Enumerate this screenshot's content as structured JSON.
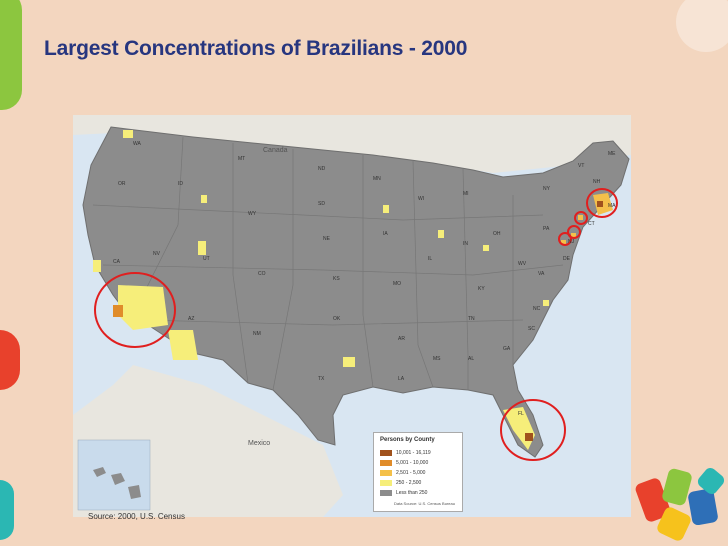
{
  "title": "Largest Concentrations of Brazilians - 2000",
  "source": "Source: 2000, U.S. Census",
  "map": {
    "country_labels": {
      "canada": "Canada",
      "mexico": "Mexico"
    },
    "state_labels": [
      "WA",
      "OR",
      "ID",
      "MT",
      "ND",
      "MN",
      "WI",
      "MI",
      "NY",
      "VT",
      "ME",
      "NH",
      "MA",
      "CT",
      "NJ",
      "PA",
      "OH",
      "IN",
      "IL",
      "IA",
      "SD",
      "NE",
      "KS",
      "MO",
      "KY",
      "WV",
      "VA",
      "NC",
      "SC",
      "GA",
      "FL",
      "AL",
      "MS",
      "TN",
      "AR",
      "LA",
      "TX",
      "OK",
      "NM",
      "AZ",
      "UT",
      "CO",
      "WY",
      "NV",
      "CA",
      "DE"
    ],
    "legend": {
      "title": "Persons by County",
      "items": [
        {
          "label": "10,001 - 16,119",
          "color": "#a0521d"
        },
        {
          "label": "5,001 - 10,000",
          "color": "#e08c2a"
        },
        {
          "label": "2,501 - 5,000",
          "color": "#f4c04a"
        },
        {
          "label": "250 - 2,500",
          "color": "#f6ee7a"
        },
        {
          "label": "Less than 250",
          "color": "#8c8c8c"
        }
      ],
      "note": "Data Source: U.S. Census Bureau"
    },
    "colors": {
      "land": "#8c8c8c",
      "water": "#d9e6f2",
      "highlight_circle": "#e01f1f"
    }
  }
}
